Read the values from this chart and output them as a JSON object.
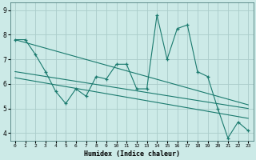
{
  "title": "",
  "xlabel": "Humidex (Indice chaleur)",
  "bg_color": "#cceae7",
  "grid_color": "#aaccca",
  "line_color": "#1a7a6e",
  "xlim": [
    -0.5,
    23.5
  ],
  "ylim": [
    3.7,
    9.3
  ],
  "xticks": [
    0,
    1,
    2,
    3,
    4,
    5,
    6,
    7,
    8,
    9,
    10,
    11,
    12,
    13,
    14,
    15,
    16,
    17,
    18,
    19,
    20,
    21,
    22,
    23
  ],
  "yticks": [
    4,
    5,
    6,
    7,
    8,
    9
  ],
  "series": [
    {
      "x": [
        0,
        1,
        2,
        3,
        4,
        5,
        6,
        7,
        8,
        9,
        10,
        11,
        12,
        13,
        14,
        15,
        16,
        17,
        18,
        19,
        20,
        21,
        22,
        23
      ],
      "y": [
        7.8,
        7.8,
        7.2,
        6.5,
        5.7,
        5.2,
        5.8,
        5.5,
        6.3,
        6.2,
        6.8,
        6.8,
        5.8,
        5.8,
        8.8,
        7.0,
        8.25,
        8.4,
        6.5,
        6.3,
        5.0,
        3.8,
        4.45,
        4.1
      ],
      "has_markers": true
    },
    {
      "x": [
        0,
        23
      ],
      "y": [
        7.8,
        5.15
      ],
      "has_markers": false
    },
    {
      "x": [
        0,
        23
      ],
      "y": [
        6.5,
        5.0
      ],
      "has_markers": false
    },
    {
      "x": [
        0,
        23
      ],
      "y": [
        6.25,
        4.6
      ],
      "has_markers": false
    }
  ]
}
